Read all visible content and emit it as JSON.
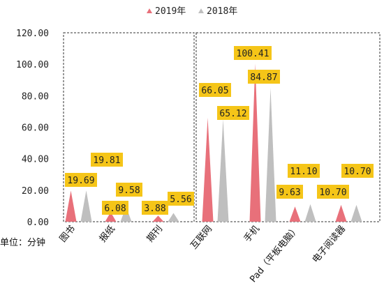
{
  "chart_data": {
    "type": "area",
    "categories": [
      "图书",
      "报纸",
      "期刊",
      "互联网",
      "手机",
      "Pad（平板电脑）",
      "电子阅读器"
    ],
    "series": [
      {
        "name": "2019年",
        "color": "#E8707A",
        "values": [
          19.69,
          6.08,
          3.88,
          66.05,
          100.41,
          9.63,
          10.7
        ],
        "labels": [
          "19.69",
          "6.08",
          "3.88",
          "66.05",
          "100.41",
          "9.63",
          "10.70"
        ]
      },
      {
        "name": "2018年",
        "color": "#BFBFBF",
        "values": [
          19.81,
          9.58,
          5.56,
          65.12,
          84.87,
          11.1,
          10.7
        ],
        "labels": [
          "19.81",
          "9.58",
          "5.56",
          "65.12",
          "84.87",
          "11.10",
          "10.70"
        ]
      }
    ],
    "ylim": [
      0,
      120
    ],
    "yticks": [
      "0.00",
      "20.00",
      "40.00",
      "60.00",
      "80.00",
      "100.00",
      "120.00"
    ],
    "unit_label": "单位：分钟",
    "legend_position": "top",
    "label_box_color": "#F5C518",
    "gridlines": false
  }
}
